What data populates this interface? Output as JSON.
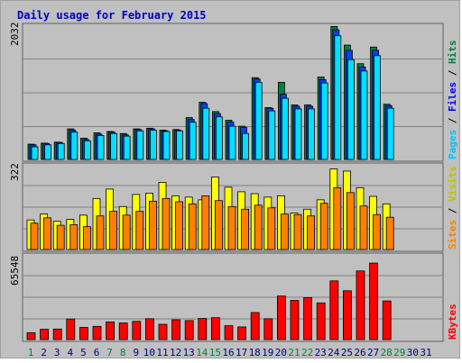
{
  "colors": {
    "background": "#c0c0c0",
    "title": "#0000c0",
    "hits_color": "#008040",
    "files_color": "#0040ff",
    "pages_color": "#00e0ff",
    "visits_color": "#ffff00",
    "sites_color": "#ff8000",
    "kbytes_color": "#ff0000",
    "weekday_label": "#000080",
    "weekend_label": "#008040"
  },
  "chart_data": {
    "type": "bar",
    "title": "Daily usage for February 2015",
    "days": [
      "1",
      "2",
      "3",
      "4",
      "5",
      "6",
      "7",
      "8",
      "9",
      "10",
      "11",
      "12",
      "13",
      "14",
      "15",
      "16",
      "17",
      "18",
      "19",
      "20",
      "21",
      "22",
      "23",
      "24",
      "25",
      "26",
      "27",
      "28",
      "29",
      "30",
      "31"
    ],
    "weekend_days": [
      "1",
      "7",
      "8",
      "14",
      "15",
      "21",
      "22",
      "28",
      "29"
    ],
    "panels": [
      {
        "id": "top",
        "max_label": "2032",
        "ymax": 2032,
        "legend": [
          "Pages",
          "Files",
          "Hits"
        ],
        "legend_separator": " / ",
        "series": [
          {
            "name": "Hits",
            "values": [
              230,
              245,
              260,
              460,
              320,
              400,
              420,
              390,
              460,
              470,
              440,
              450,
              630,
              860,
              720,
              590,
              500,
              1230,
              780,
              1160,
              820,
              820,
              1240,
              2000,
              1720,
              1440,
              1690,
              830
            ]
          },
          {
            "name": "Files",
            "values": [
              220,
              240,
              255,
              440,
              300,
              380,
              410,
              370,
              450,
              460,
              430,
              440,
              600,
              840,
              690,
              560,
              480,
              1210,
              770,
              980,
              800,
              800,
              1200,
              1950,
              1640,
              1390,
              1640,
              810
            ]
          },
          {
            "name": "Pages",
            "values": [
              190,
              220,
              240,
              410,
              280,
              360,
              390,
              350,
              430,
              440,
              420,
              430,
              560,
              770,
              640,
              500,
              390,
              1160,
              730,
              920,
              760,
              760,
              1150,
              1860,
              1500,
              1330,
              1560,
              770
            ]
          }
        ]
      },
      {
        "id": "middle",
        "max_label": "322",
        "ymax": 322,
        "legend": [
          "Sites",
          "Visits"
        ],
        "legend_separator": " / ",
        "series": [
          {
            "name": "Visits",
            "values": [
              110,
              132,
              105,
              112,
              128,
              190,
              225,
              160,
              205,
              210,
              250,
              200,
              195,
              185,
              270,
              232,
              215,
              208,
              195,
              200,
              136,
              150,
              185,
              300,
              292,
              230,
              198,
              170
            ]
          },
          {
            "name": "Sites",
            "values": [
              98,
              118,
              90,
              92,
              85,
              125,
              142,
              128,
              142,
              180,
              190,
              178,
              170,
              200,
              182,
              160,
              150,
              165,
              155,
              132,
              130,
              125,
              172,
              230,
              212,
              162,
              130,
              120
            ]
          }
        ]
      },
      {
        "id": "bottom",
        "max_label": "65548",
        "ymax": 65548,
        "legend": [
          "KBytes"
        ],
        "legend_separator": "",
        "series": [
          {
            "name": "KBytes",
            "values": [
              5200,
              7800,
              8000,
              15600,
              9200,
              10000,
              13400,
              12600,
              13800,
              15800,
              11600,
              15000,
              14400,
              16000,
              16600,
              10500,
              9600,
              20500,
              15800,
              33000,
              29700,
              31800,
              27800,
              44500,
              37000,
              52000,
              58000,
              29300
            ]
          }
        ]
      }
    ]
  }
}
